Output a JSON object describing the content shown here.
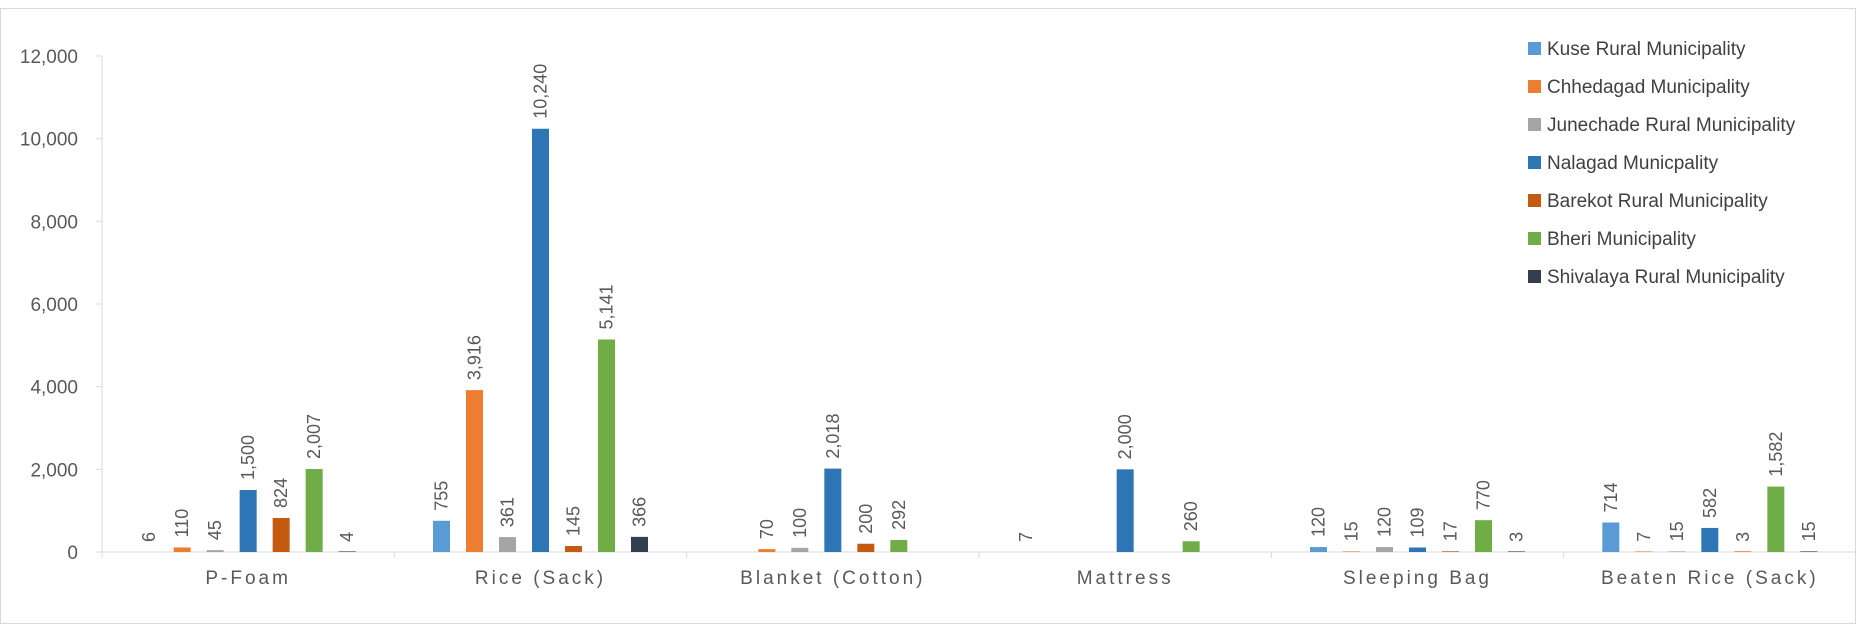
{
  "chart_data": {
    "type": "bar",
    "categories": [
      "P-Foam",
      "Rice (Sack)",
      "Blanket (Cotton)",
      "Mattress",
      "Sleeping Bag",
      "Beaten Rice (Sack)"
    ],
    "ylim": [
      0,
      12000
    ],
    "yticks": [
      "0",
      "2,000",
      "4,000",
      "6,000",
      "8,000",
      "10,000",
      "12,000"
    ],
    "grid": false,
    "legend_position": "top-right",
    "series": [
      {
        "name": "Kuse Rural Municipality",
        "color": "#5B9BD5",
        "values": [
          null,
          755,
          null,
          null,
          120,
          714
        ],
        "labels": [
          "",
          "755",
          "",
          "",
          "120",
          "714"
        ]
      },
      {
        "name": "Chhedagad Municipality",
        "color": "#ED7D31",
        "values": [
          110,
          3916,
          70,
          null,
          15,
          7
        ],
        "labels": [
          "110",
          "3,916",
          "70",
          "",
          "15",
          "7"
        ]
      },
      {
        "name": "Junechade Rural Municipality",
        "color": "#A5A5A5",
        "values": [
          45,
          361,
          100,
          null,
          120,
          15
        ],
        "labels": [
          "45",
          "361",
          "100",
          "",
          "120",
          "15"
        ]
      },
      {
        "name": "Nalagad Municpality",
        "color": "#2E75B6",
        "values": [
          1500,
          10240,
          2018,
          2000,
          109,
          582
        ],
        "labels": [
          "1,500",
          "10,240",
          "2,018",
          "2,000",
          "109",
          "582"
        ]
      },
      {
        "name": "Barekot Rural Municipality",
        "color": "#C55A11",
        "values": [
          824,
          145,
          200,
          null,
          17,
          3
        ],
        "labels": [
          "824",
          "145",
          "200",
          "",
          "17",
          "3"
        ]
      },
      {
        "name": "Bheri Municipality",
        "color": "#70AD47",
        "values": [
          2007,
          5141,
          292,
          260,
          770,
          1582
        ],
        "labels": [
          "2,007",
          "5,141",
          "292",
          "260",
          "770",
          "1,582"
        ]
      },
      {
        "name": "Shivalaya Rural Municipality",
        "color": "#333F50",
        "values": [
          4,
          366,
          null,
          null,
          3,
          15
        ],
        "labels": [
          "4",
          "366",
          "",
          "",
          "3",
          "15"
        ]
      }
    ],
    "free_labels": [
      {
        "category": 0,
        "text": "6"
      },
      {
        "category": 3,
        "text": "7"
      }
    ]
  }
}
